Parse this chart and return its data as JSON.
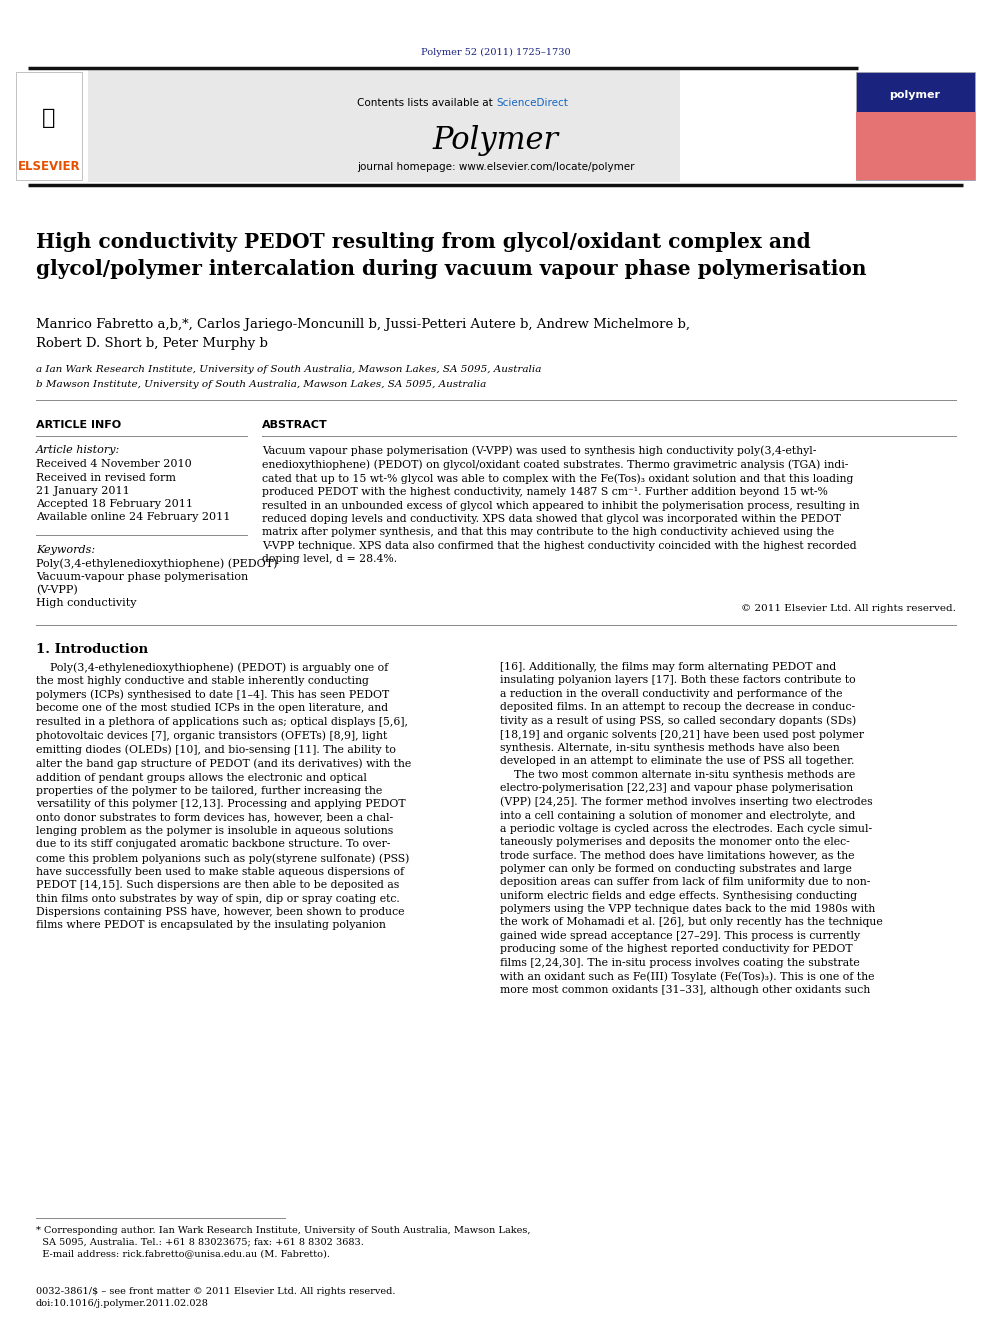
{
  "page_width": 9.92,
  "page_height": 13.23,
  "bg_color": "#ffffff",
  "journal_ref": "Polymer 52 (2011) 1725–1730",
  "journal_ref_color": "#1a237e",
  "header_bg": "#e8e8e8",
  "contents_text": "Contents lists available at ",
  "sciencedirect_text": "ScienceDirect",
  "sciencedirect_color": "#1565c0",
  "journal_name": "Polymer",
  "homepage_text": "journal homepage: www.elsevier.com/locate/polymer",
  "elsevier_color": "#e65100",
  "title_clean": "High conductivity PEDOT resulting from glycol/oxidant complex and\nglycol/polymer intercalation during vacuum vapour phase polymerisation",
  "authors": "Manrico Fabretto a,b,*, Carlos Jariego-Moncunill b, Jussi-Petteri Autere b, Andrew Michelmore b,\nRobert D. Short b, Peter Murphy b",
  "affil_a": "a Ian Wark Research Institute, University of South Australia, Mawson Lakes, SA 5095, Australia",
  "affil_b": "b Mawson Institute, University of South Australia, Mawson Lakes, SA 5095, Australia",
  "article_info_header": "ARTICLE INFO",
  "abstract_header": "ABSTRACT",
  "abstract_text": "Vacuum vapour phase polymerisation (V-VPP) was used to synthesis high conductivity poly(3,4-ethyl-\nenedioxythiophene) (PEDOT) on glycol/oxidant coated substrates. Thermo gravimetric analysis (TGA) indi-\ncated that up to 15 wt-% glycol was able to complex with the Fe(Tos)₃ oxidant solution and that this loading\nproduced PEDOT with the highest conductivity, namely 1487 S cm⁻¹. Further addition beyond 15 wt-%\nresulted in an unbounded excess of glycol which appeared to inhibit the polymerisation process, resulting in\nreduced doping levels and conductivity. XPS data showed that glycol was incorporated within the PEDOT\nmatrix after polymer synthesis, and that this may contribute to the high conductivity achieved using the\nV-VPP technique. XPS data also confirmed that the highest conductivity coincided with the highest recorded\ndoping level, d = 28.4%.",
  "copyright": "© 2011 Elsevier Ltd. All rights reserved.",
  "intro_header": "1. Introduction",
  "col1_text": "    Poly(3,4-ethylenedioxythiophene) (PEDOT) is arguably one of\nthe most highly conductive and stable inherently conducting\npolymers (ICPs) synthesised to date [1–4]. This has seen PEDOT\nbecome one of the most studied ICPs in the open literature, and\nresulted in a plethora of applications such as; optical displays [5,6],\nphotovoltaic devices [7], organic transistors (OFETs) [8,9], light\nemitting diodes (OLEDs) [10], and bio-sensing [11]. The ability to\nalter the band gap structure of PEDOT (and its derivatives) with the\naddition of pendant groups allows the electronic and optical\nproperties of the polymer to be tailored, further increasing the\nversatility of this polymer [12,13]. Processing and applying PEDOT\nonto donor substrates to form devices has, however, been a chal-\nlenging problem as the polymer is insoluble in aqueous solutions\ndue to its stiff conjugated aromatic backbone structure. To over-\ncome this problem polyanions such as poly(styrene sulfonate) (PSS)\nhave successfully been used to make stable aqueous dispersions of\nPEDOT [14,15]. Such dispersions are then able to be deposited as\nthin films onto substrates by way of spin, dip or spray coating etc.\nDispersions containing PSS have, however, been shown to produce\nfilms where PEDOT is encapsulated by the insulating polyanion",
  "col2_text": "[16]. Additionally, the films may form alternating PEDOT and\ninsulating polyanion layers [17]. Both these factors contribute to\na reduction in the overall conductivity and performance of the\ndeposited films. In an attempt to recoup the decrease in conduc-\ntivity as a result of using PSS, so called secondary dopants (SDs)\n[18,19] and organic solvents [20,21] have been used post polymer\nsynthesis. Alternate, in-situ synthesis methods have also been\ndeveloped in an attempt to eliminate the use of PSS all together.\n    The two most common alternate in-situ synthesis methods are\nelectro-polymerisation [22,23] and vapour phase polymerisation\n(VPP) [24,25]. The former method involves inserting two electrodes\ninto a cell containing a solution of monomer and electrolyte, and\na periodic voltage is cycled across the electrodes. Each cycle simul-\ntaneously polymerises and deposits the monomer onto the elec-\ntrode surface. The method does have limitations however, as the\npolymer can only be formed on conducting substrates and large\ndeposition areas can suffer from lack of film uniformity due to non-\nuniform electric fields and edge effects. Synthesising conducting\npolymers using the VPP technique dates back to the mid 1980s with\nthe work of Mohamadi et al. [26], but only recently has the technique\ngained wide spread acceptance [27–29]. This process is currently\nproducing some of the highest reported conductivity for PEDOT\nfilms [2,24,30]. The in-situ process involves coating the substrate\nwith an oxidant such as Fe(III) Tosylate (Fe(Tos)₃). This is one of the\nmore most common oxidants [31–33], although other oxidants such",
  "footnote": "* Corresponding author. Ian Wark Research Institute, University of South Australia, Mawson Lakes,\n  SA 5095, Australia. Tel.: +61 8 83023675; fax: +61 8 8302 3683.\n  E-mail address: rick.fabretto@unisa.edu.au (M. Fabretto).",
  "footer_left": "0032-3861/$ – see front matter © 2011 Elsevier Ltd. All rights reserved.\ndoi:10.1016/j.polymer.2011.02.028",
  "text_color": "#000000",
  "divider_color": "#888888",
  "thick_line_color": "#111111"
}
